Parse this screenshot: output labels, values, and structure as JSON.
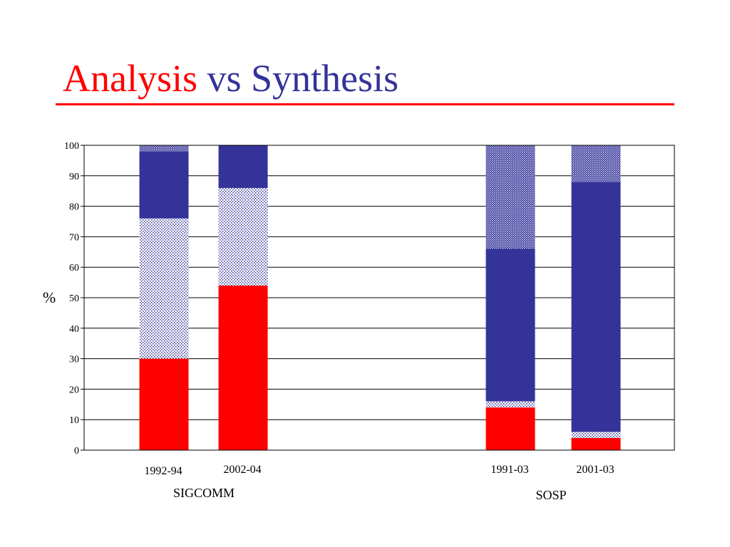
{
  "title": {
    "part1": "Analysis",
    "part2": "vs",
    "part3": "Synthesis",
    "color_part1": "#ff0000",
    "color_rest": "#333399"
  },
  "colors": {
    "rule": "#ff0000",
    "analysis": "#ff0000",
    "synthesis": "#333399",
    "hatch_light": "#8f91d6",
    "hatch_dark": "#3b3f9e"
  },
  "chart_data": {
    "type": "bar",
    "stacked": true,
    "ylabel": "%",
    "ylim": [
      0,
      100
    ],
    "yticks": [
      0,
      10,
      20,
      30,
      40,
      50,
      60,
      70,
      80,
      90,
      100
    ],
    "grid": true,
    "categories": [
      "1992-94",
      "2002-04",
      "1991-03",
      "2001-03"
    ],
    "groups": [
      {
        "label": "SIGCOMM",
        "categories": [
          "1992-94",
          "2002-04"
        ]
      },
      {
        "label": "SOSP",
        "categories": [
          "1991-03",
          "2001-03"
        ]
      }
    ],
    "series": [
      {
        "values": [
          30,
          54,
          14,
          4
        ],
        "color": "#ff0000",
        "pattern": "solid"
      },
      {
        "values": [
          46,
          32,
          2,
          2
        ],
        "color": "#8f91d6",
        "pattern": "light-dots"
      },
      {
        "values": [
          22,
          14,
          50,
          82
        ],
        "color": "#333399",
        "pattern": "solid"
      },
      {
        "values": [
          2,
          0,
          34,
          12
        ],
        "color": "#3b3f9e",
        "pattern": "dense-dots"
      }
    ]
  }
}
